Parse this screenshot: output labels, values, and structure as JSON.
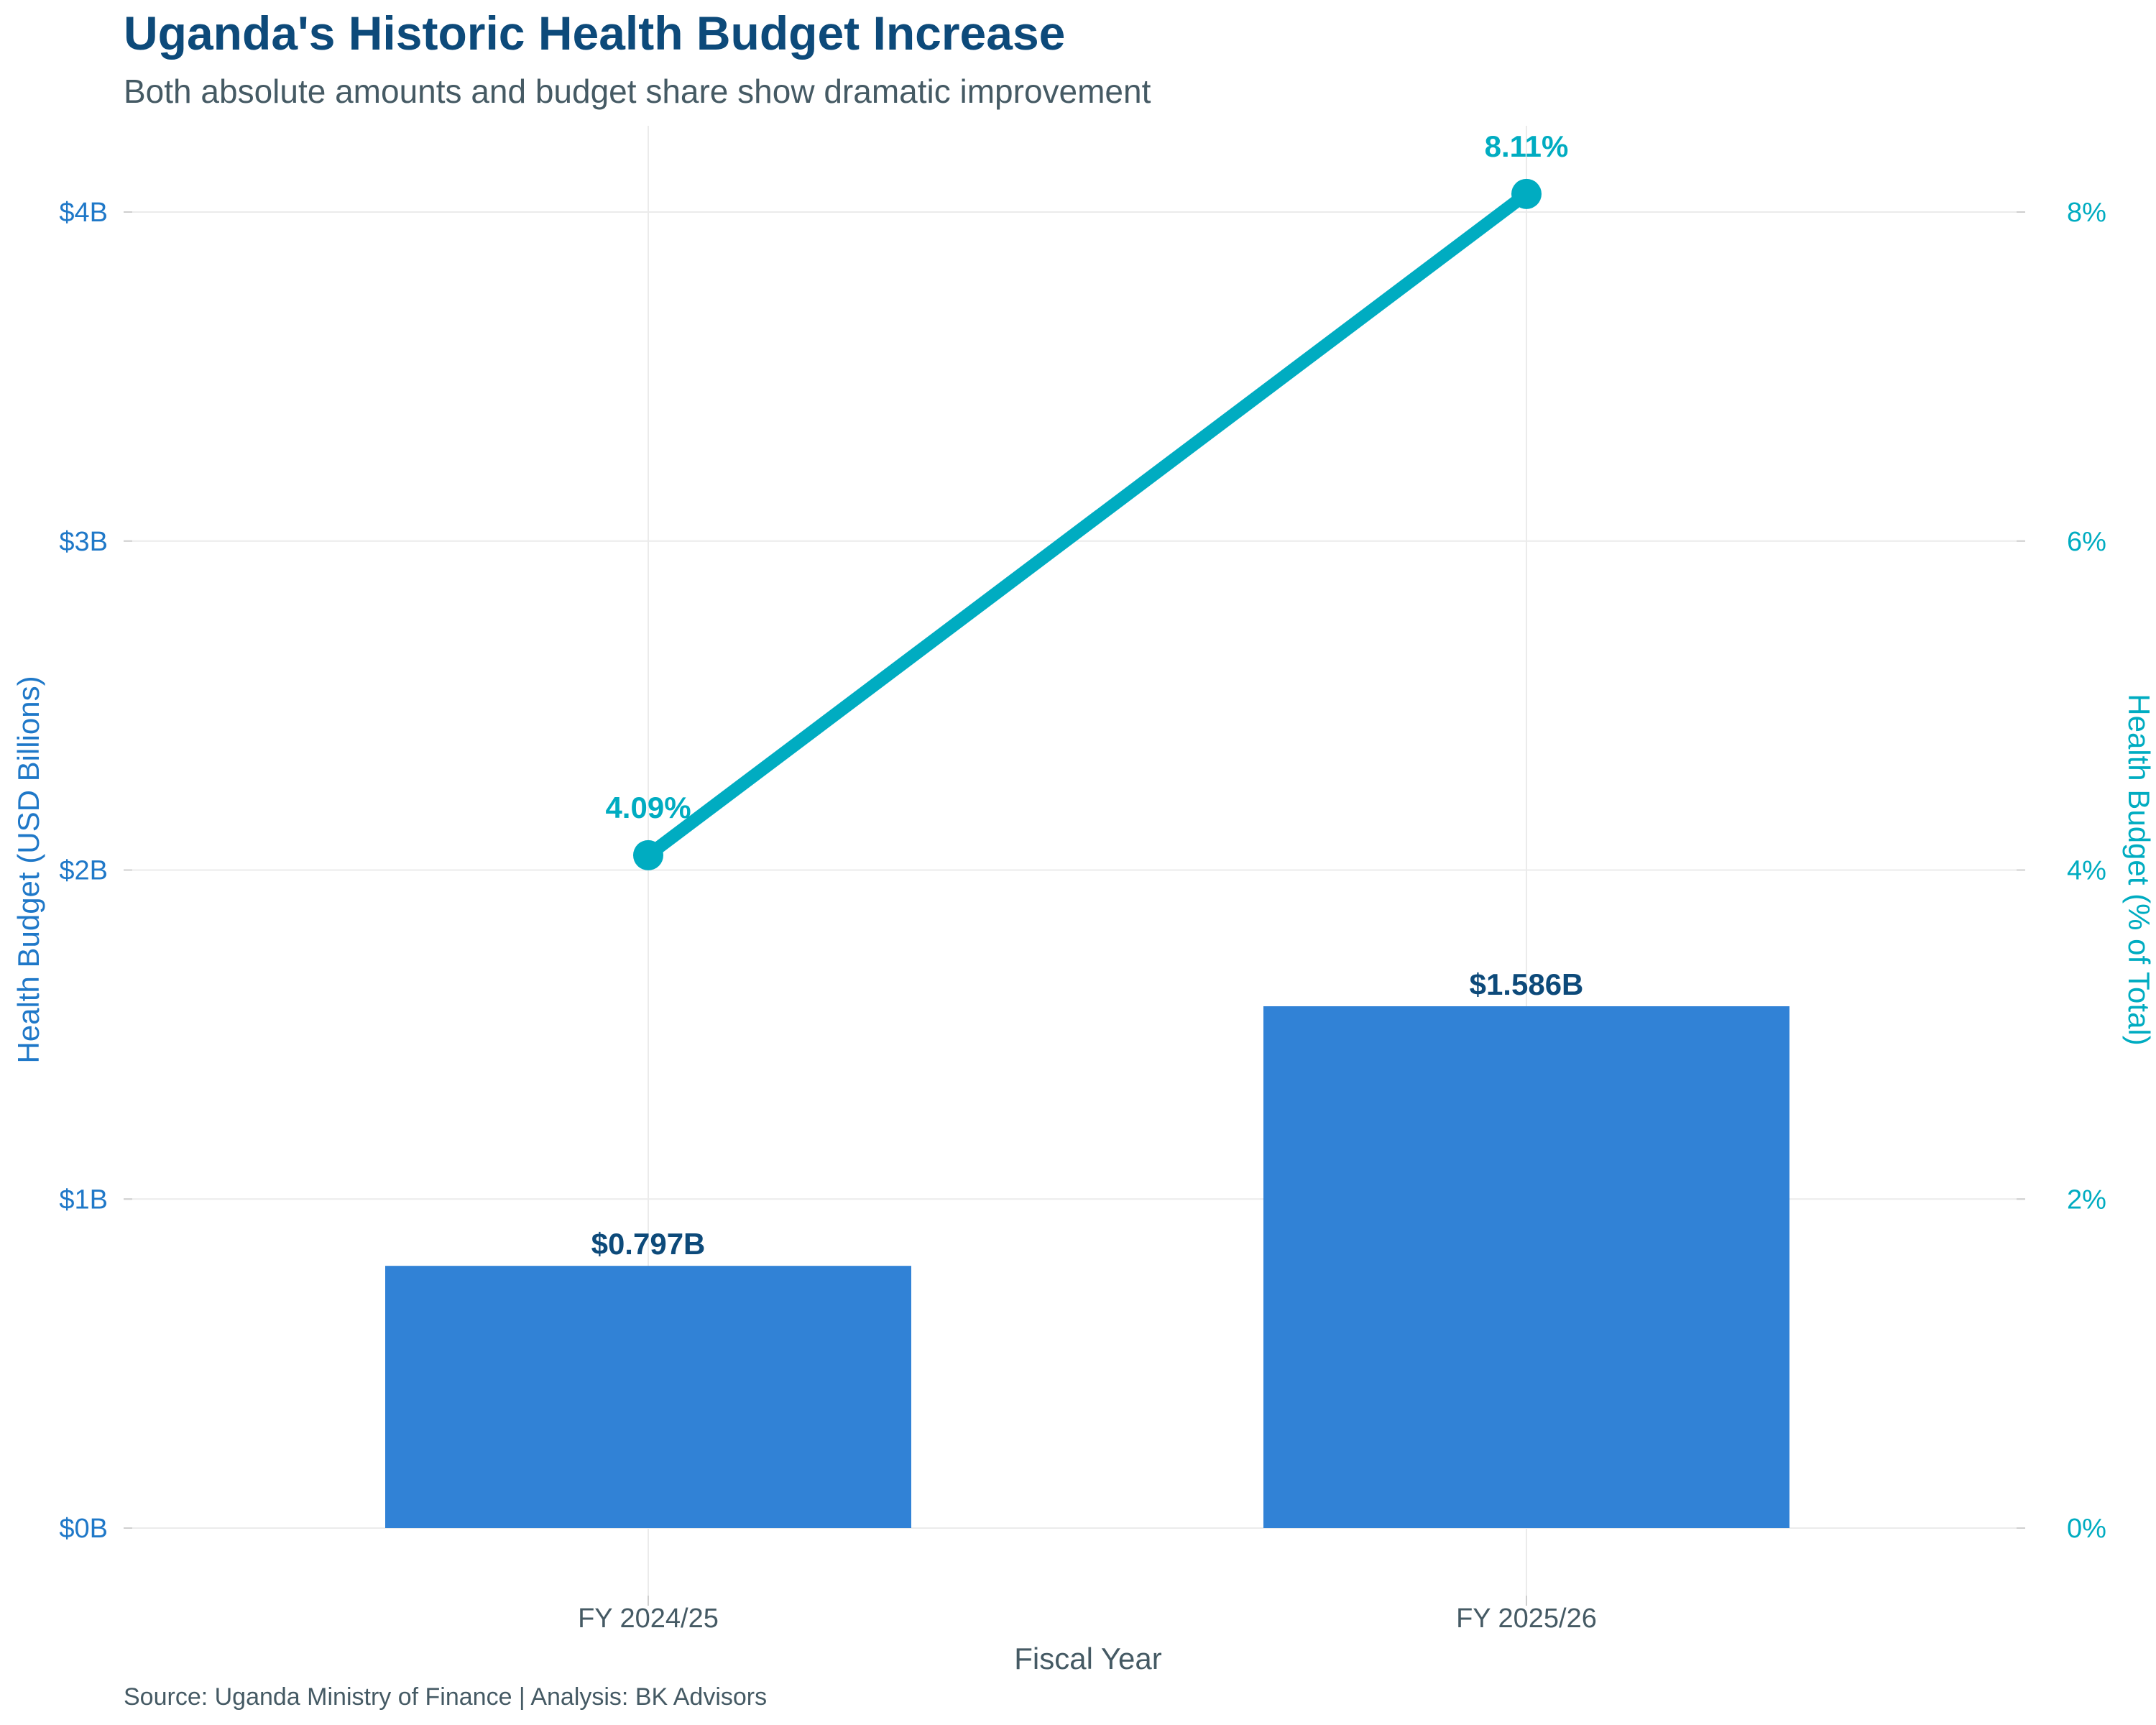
{
  "title": "Uganda's Historic Health Budget Increase",
  "subtitle": "Both absolute amounts and budget share show dramatic improvement",
  "source": "Source: Uganda Ministry of Finance | Analysis: BK Advisors",
  "chart_data": {
    "type": "bar",
    "categories": [
      "FY 2024/25",
      "FY 2025/26"
    ],
    "xlabel": "Fiscal Year",
    "series": [
      {
        "type": "bar",
        "axis": "left",
        "values": [
          0.797,
          1.586
        ],
        "data_labels": [
          "$0.797B",
          "$1.586B"
        ],
        "color": "#3182d6"
      },
      {
        "type": "line",
        "axis": "right",
        "values": [
          4.09,
          8.11
        ],
        "data_labels": [
          "4.09%",
          "8.11%"
        ],
        "color": "#00acc1"
      }
    ],
    "y_left": {
      "label": "Health Budget (USD Billions)",
      "ticks": [
        0,
        1,
        2,
        3,
        4
      ],
      "tick_labels": [
        "$0B",
        "$1B",
        "$2B",
        "$3B",
        "$4B"
      ],
      "range": [
        -0.2,
        4.26
      ],
      "color": "#1f78c8"
    },
    "y_right": {
      "label": "Health Budget (% of Total)",
      "ticks": [
        0,
        2,
        4,
        6,
        8
      ],
      "tick_labels": [
        "0%",
        "2%",
        "4%",
        "6%",
        "8%"
      ],
      "range": [
        -0.4,
        8.52
      ],
      "color": "#00acc1"
    },
    "grid": true,
    "bar_label_color": "#0d4a7a",
    "grid_color": "#ebebeb"
  }
}
